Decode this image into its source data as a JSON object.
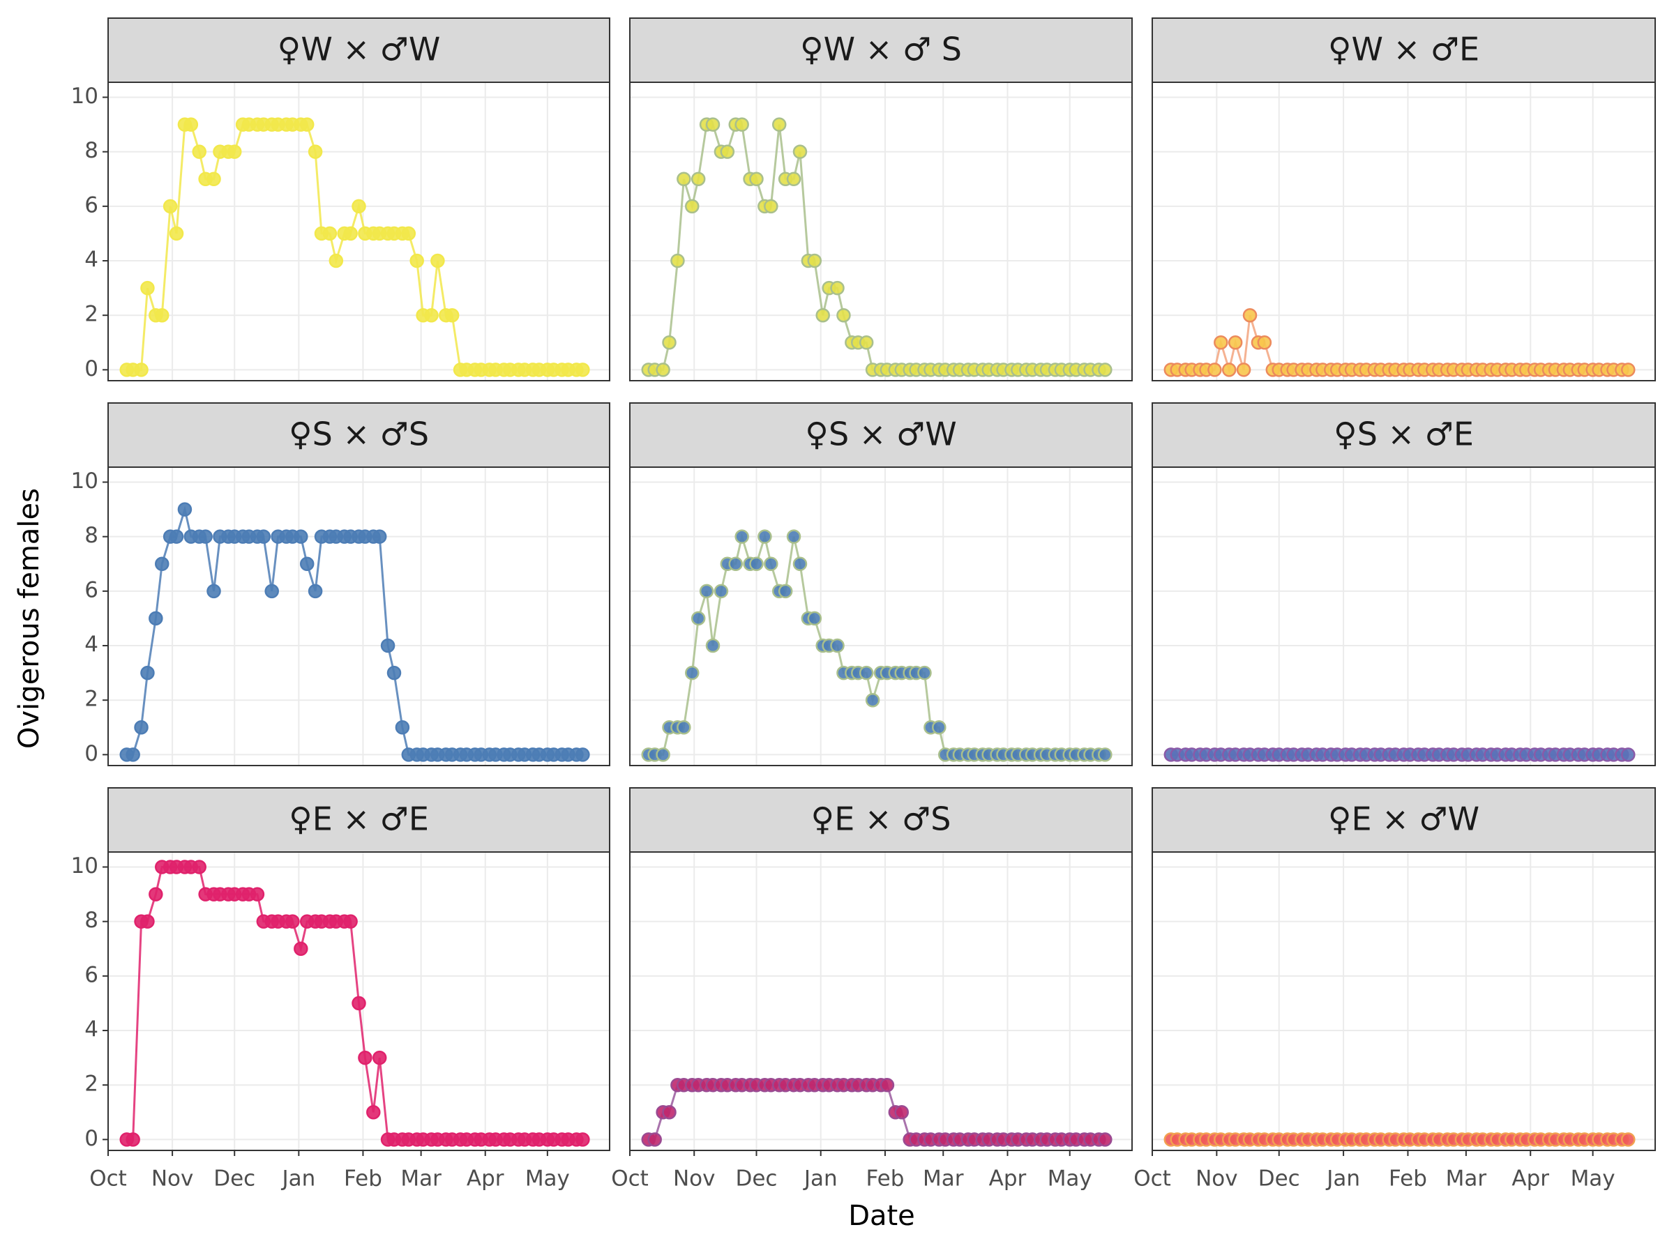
{
  "chart_data": {
    "type": "line",
    "xlabel": "Date",
    "ylabel": "Ovigerous females",
    "x": [
      9,
      12,
      16,
      19,
      23,
      26,
      30,
      33,
      37,
      40,
      44,
      47,
      51,
      54,
      58,
      61,
      65,
      68,
      72,
      75,
      79,
      82,
      86,
      89,
      93,
      96,
      100,
      103,
      107,
      110,
      114,
      117,
      121,
      124,
      128,
      131,
      135,
      138,
      142,
      145,
      149,
      152,
      156,
      159,
      163,
      166,
      170,
      173,
      177,
      180,
      184,
      187,
      191,
      194,
      198,
      201,
      205,
      208,
      212,
      215,
      219,
      222,
      226,
      229
    ],
    "xlim": [
      0,
      242
    ],
    "xticks": [
      {
        "value": 0,
        "label": "Oct"
      },
      {
        "value": 31,
        "label": "Nov"
      },
      {
        "value": 61,
        "label": "Dec"
      },
      {
        "value": 92,
        "label": "Jan"
      },
      {
        "value": 123,
        "label": "Feb"
      },
      {
        "value": 151,
        "label": "Mar"
      },
      {
        "value": 182,
        "label": "Apr"
      },
      {
        "value": 212,
        "label": "May"
      }
    ],
    "ylim": [
      -0.4,
      10.55
    ],
    "yticks": [
      0,
      2,
      4,
      6,
      8,
      10
    ],
    "grid": true,
    "panels": [
      {
        "title": "♀W × ♂W",
        "color": "#f2e84b",
        "fill": "#f2e84b",
        "edge": "#f2e84b",
        "values": [
          0,
          0,
          0,
          3,
          2,
          2,
          6,
          5,
          9,
          9,
          8,
          7,
          7,
          8,
          8,
          8,
          9,
          9,
          9,
          9,
          9,
          9,
          9,
          9,
          9,
          9,
          8,
          5,
          5,
          4,
          5,
          5,
          6,
          5,
          5,
          5,
          5,
          5,
          5,
          5,
          4,
          2,
          2,
          4,
          2,
          2,
          0,
          0,
          0,
          0,
          0,
          0,
          0,
          0,
          0,
          0,
          0,
          0,
          0,
          0,
          0,
          0,
          0,
          0
        ]
      },
      {
        "title": "♀W × ♂ S",
        "color": "#a9bf8c",
        "fill": "#e3e04a",
        "edge": "#a9bf8c",
        "values": [
          0,
          0,
          0,
          1,
          4,
          7,
          6,
          7,
          9,
          9,
          8,
          8,
          9,
          9,
          7,
          7,
          6,
          6,
          9,
          7,
          7,
          8,
          4,
          4,
          2,
          3,
          3,
          2,
          1,
          1,
          1,
          0,
          0,
          0,
          0,
          0,
          0,
          0,
          0,
          0,
          0,
          0,
          0,
          0,
          0,
          0,
          0,
          0,
          0,
          0,
          0,
          0,
          0,
          0,
          0,
          0,
          0,
          0,
          0,
          0,
          0,
          0,
          0,
          0
        ]
      },
      {
        "title": "♀W × ♂E",
        "color": "#f3a57f",
        "fill": "#f8c64c",
        "edge": "#ec8a5c",
        "values": [
          0,
          0,
          0,
          0,
          0,
          0,
          0,
          1,
          0,
          1,
          0,
          2,
          1,
          1,
          0,
          0,
          0,
          0,
          0,
          0,
          0,
          0,
          0,
          0,
          0,
          0,
          0,
          0,
          0,
          0,
          0,
          0,
          0,
          0,
          0,
          0,
          0,
          0,
          0,
          0,
          0,
          0,
          0,
          0,
          0,
          0,
          0,
          0,
          0,
          0,
          0,
          0,
          0,
          0,
          0,
          0,
          0,
          0,
          0,
          0,
          0,
          0,
          0,
          0
        ]
      },
      {
        "title": "♀S × ♂S",
        "color": "#4d7db5",
        "fill": "#4d7db5",
        "edge": "#4d7db5",
        "values": [
          0,
          0,
          1,
          3,
          5,
          7,
          8,
          8,
          9,
          8,
          8,
          8,
          6,
          8,
          8,
          8,
          8,
          8,
          8,
          8,
          6,
          8,
          8,
          8,
          8,
          7,
          6,
          8,
          8,
          8,
          8,
          8,
          8,
          8,
          8,
          8,
          4,
          3,
          1,
          0,
          0,
          0,
          0,
          0,
          0,
          0,
          0,
          0,
          0,
          0,
          0,
          0,
          0,
          0,
          0,
          0,
          0,
          0,
          0,
          0,
          0,
          0,
          0,
          0
        ]
      },
      {
        "title": "♀S × ♂W",
        "color": "#a9bf8c",
        "fill": "#4d7db5",
        "edge": "#a9bf8c",
        "values": [
          0,
          0,
          0,
          1,
          1,
          1,
          3,
          5,
          6,
          4,
          6,
          7,
          7,
          8,
          7,
          7,
          8,
          7,
          6,
          6,
          8,
          7,
          5,
          5,
          4,
          4,
          4,
          3,
          3,
          3,
          3,
          2,
          3,
          3,
          3,
          3,
          3,
          3,
          3,
          1,
          1,
          0,
          0,
          0,
          0,
          0,
          0,
          0,
          0,
          0,
          0,
          0,
          0,
          0,
          0,
          0,
          0,
          0,
          0,
          0,
          0,
          0,
          0,
          0
        ]
      },
      {
        "title": "♀S × ♂E",
        "color": "#8a5aa8",
        "fill": "#5a72b8",
        "edge": "#8a5aa8",
        "values": [
          0,
          0,
          0,
          0,
          0,
          0,
          0,
          0,
          0,
          0,
          0,
          0,
          0,
          0,
          0,
          0,
          0,
          0,
          0,
          0,
          0,
          0,
          0,
          0,
          0,
          0,
          0,
          0,
          0,
          0,
          0,
          0,
          0,
          0,
          0,
          0,
          0,
          0,
          0,
          0,
          0,
          0,
          0,
          0,
          0,
          0,
          0,
          0,
          0,
          0,
          0,
          0,
          0,
          0,
          0,
          0,
          0,
          0,
          0,
          0,
          0,
          0,
          0,
          0
        ]
      },
      {
        "title": "♀E × ♂E",
        "color": "#e0226c",
        "fill": "#e0226c",
        "edge": "#e0226c",
        "values": [
          0,
          0,
          8,
          8,
          9,
          10,
          10,
          10,
          10,
          10,
          10,
          9,
          9,
          9,
          9,
          9,
          9,
          9,
          9,
          8,
          8,
          8,
          8,
          8,
          7,
          8,
          8,
          8,
          8,
          8,
          8,
          8,
          5,
          3,
          1,
          3,
          0,
          0,
          0,
          0,
          0,
          0,
          0,
          0,
          0,
          0,
          0,
          0,
          0,
          0,
          0,
          0,
          0,
          0,
          0,
          0,
          0,
          0,
          0,
          0,
          0,
          0,
          0,
          0
        ]
      },
      {
        "title": "♀E × ♂S",
        "color": "#9a5a9e",
        "fill": "#c0286e",
        "edge": "#9a4a92",
        "values": [
          0,
          0,
          1,
          1,
          2,
          2,
          2,
          2,
          2,
          2,
          2,
          2,
          2,
          2,
          2,
          2,
          2,
          2,
          2,
          2,
          2,
          2,
          2,
          2,
          2,
          2,
          2,
          2,
          2,
          2,
          2,
          2,
          2,
          2,
          1,
          1,
          0,
          0,
          0,
          0,
          0,
          0,
          0,
          0,
          0,
          0,
          0,
          0,
          0,
          0,
          0,
          0,
          0,
          0,
          0,
          0,
          0,
          0,
          0,
          0,
          0,
          0,
          0,
          0
        ]
      },
      {
        "title": "♀E × ♂W",
        "color": "#f27a52",
        "fill": "#f05a5a",
        "edge": "#f2a050",
        "values": [
          0,
          0,
          0,
          0,
          0,
          0,
          0,
          0,
          0,
          0,
          0,
          0,
          0,
          0,
          0,
          0,
          0,
          0,
          0,
          0,
          0,
          0,
          0,
          0,
          0,
          0,
          0,
          0,
          0,
          0,
          0,
          0,
          0,
          0,
          0,
          0,
          0,
          0,
          0,
          0,
          0,
          0,
          0,
          0,
          0,
          0,
          0,
          0,
          0,
          0,
          0,
          0,
          0,
          0,
          0,
          0,
          0,
          0,
          0,
          0,
          0,
          0,
          0,
          0
        ]
      }
    ]
  }
}
